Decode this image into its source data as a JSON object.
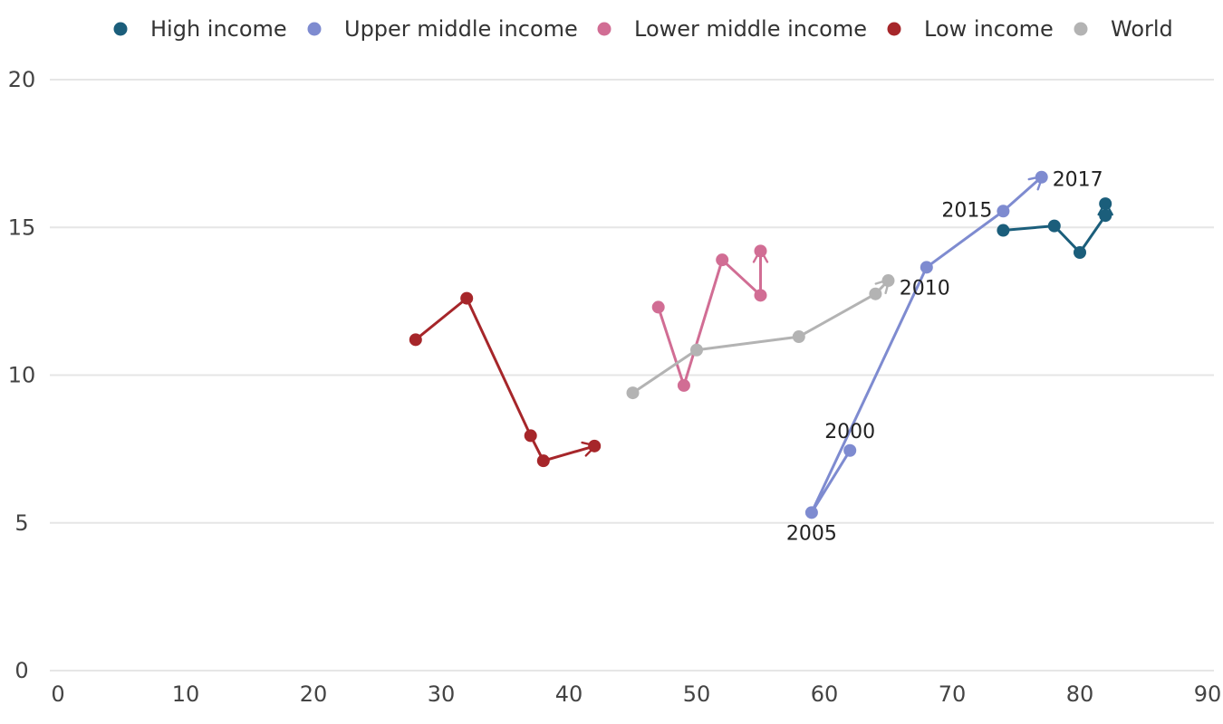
{
  "chart_data": {
    "type": "line",
    "title": "",
    "xlabel": "",
    "ylabel": "",
    "xlim": [
      0,
      90
    ],
    "ylim": [
      0,
      20
    ],
    "x_ticks": [
      0,
      10,
      20,
      30,
      40,
      50,
      60,
      70,
      80,
      90
    ],
    "y_ticks": [
      0,
      5,
      10,
      15,
      20
    ],
    "grid": "horizontal",
    "legend": "top",
    "series": [
      {
        "name": "High income",
        "color": "#1b5e7b",
        "points": [
          [
            74,
            14.9
          ],
          [
            78,
            15.05
          ],
          [
            80,
            14.15
          ],
          [
            82,
            15.4
          ],
          [
            82,
            15.8
          ]
        ]
      },
      {
        "name": "Upper middle income",
        "color": "#7e8bd0",
        "points": [
          [
            62,
            7.45
          ],
          [
            59,
            5.35
          ],
          [
            68,
            13.65
          ],
          [
            74,
            15.55
          ],
          [
            77,
            16.7
          ]
        ]
      },
      {
        "name": "Lower middle income",
        "color": "#d16d94",
        "points": [
          [
            47,
            12.3
          ],
          [
            49,
            9.65
          ],
          [
            52,
            13.9
          ],
          [
            55,
            12.7
          ],
          [
            55,
            14.2
          ]
        ]
      },
      {
        "name": "Low income",
        "color": "#a6262a",
        "points": [
          [
            28,
            11.2
          ],
          [
            32,
            12.6
          ],
          [
            37,
            7.95
          ],
          [
            38,
            7.1
          ],
          [
            42,
            7.6
          ]
        ]
      },
      {
        "name": "World",
        "color": "#b3b3b3",
        "points": [
          [
            45,
            9.4
          ],
          [
            50,
            10.85
          ],
          [
            58,
            11.3
          ],
          [
            64,
            12.75
          ],
          [
            65,
            13.2
          ]
        ]
      }
    ],
    "annotations": [
      {
        "text": "2000",
        "x": 62,
        "y": 7.45,
        "pos": "above"
      },
      {
        "text": "2005",
        "x": 59,
        "y": 5.35,
        "pos": "below"
      },
      {
        "text": "2010",
        "x": 68,
        "y": 13.65,
        "pos": "below-right"
      },
      {
        "text": "2015",
        "x": 74,
        "y": 15.55,
        "pos": "left"
      },
      {
        "text": "2017",
        "x": 77,
        "y": 16.7,
        "pos": "right"
      }
    ]
  }
}
